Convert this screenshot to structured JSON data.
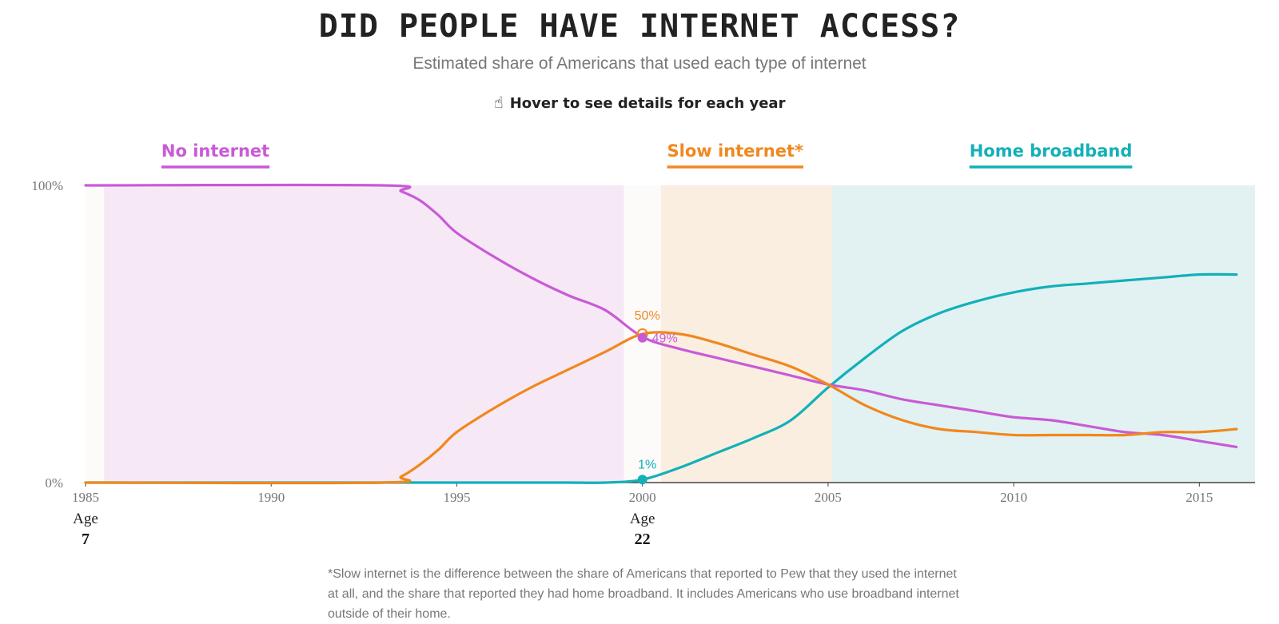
{
  "header": {
    "title": "DID PEOPLE HAVE INTERNET ACCESS?",
    "subtitle": "Estimated share of Americans that used each type of internet",
    "hover_hint": "Hover to see details for each year"
  },
  "footnote": "*Slow internet is the difference between the share of Americans that reported to Pew that they used the internet at all, and the share that reported they had home broadband. It includes Americans who use broadband internet outside of their home.",
  "colors": {
    "no_internet": "#c95ad6",
    "slow_internet": "#f0881e",
    "home_broadband": "#13b0b8",
    "axis": "#444444",
    "tick_label": "#777777"
  },
  "chart_data": {
    "type": "line",
    "title": "DID PEOPLE HAVE INTERNET ACCESS?",
    "xlabel": "",
    "ylabel": "",
    "xlim": [
      1985,
      2016.5
    ],
    "ylim": [
      0,
      100
    ],
    "x_ticks": [
      1985,
      1990,
      1995,
      2000,
      2005,
      2010,
      2015
    ],
    "y_ticks": [
      {
        "value": 0,
        "label": "0%"
      },
      {
        "value": 100,
        "label": "100%"
      }
    ],
    "x": [
      1985,
      1993,
      1993.5,
      1994,
      1994.5,
      1995,
      1996,
      1997,
      1998,
      1999,
      2000,
      2001,
      2002,
      2003,
      2004,
      2005,
      2006,
      2007,
      2008,
      2009,
      2010,
      2011,
      2012,
      2013,
      2014,
      2015,
      2016
    ],
    "series": [
      {
        "name": "No internet",
        "color_key": "no_internet",
        "values": [
          100,
          100,
          98,
          95,
          90,
          84,
          76,
          69,
          63,
          58,
          49,
          45,
          42,
          39,
          36,
          33,
          31,
          28,
          26,
          24,
          22,
          21,
          19,
          17,
          16,
          14,
          12
        ]
      },
      {
        "name": "Slow internet*",
        "color_key": "slow_internet",
        "values": [
          0,
          0,
          2,
          6,
          11,
          17,
          25,
          32,
          38,
          44,
          50,
          50,
          47,
          43,
          39,
          33,
          26,
          21,
          18,
          17,
          16,
          16,
          16,
          16,
          17,
          17,
          18
        ]
      },
      {
        "name": "Home broadband",
        "color_key": "home_broadband",
        "values": [
          0,
          0,
          0,
          0,
          0,
          0,
          0,
          0,
          0,
          0,
          1,
          5,
          10,
          15,
          21,
          32,
          42,
          51,
          57,
          61,
          64,
          66,
          67,
          68,
          69,
          70,
          70
        ]
      }
    ],
    "era_bands": [
      {
        "from": 1985.5,
        "to": 1999.5,
        "color_key": "no_internet"
      },
      {
        "from": 2000.5,
        "to": 2005.1,
        "color_key": "slow_internet"
      },
      {
        "from": 2005.1,
        "to": 2016.5,
        "color_key": "home_broadband"
      }
    ],
    "legend": [
      {
        "label": "No internet",
        "color_key": "no_internet",
        "center_year": 1988.5
      },
      {
        "label": "Slow internet*",
        "color_key": "slow_internet",
        "center_year": 2002.5
      },
      {
        "label": "Home broadband",
        "color_key": "home_broadband",
        "center_year": 2011
      }
    ],
    "age_markers": [
      {
        "year": 1985,
        "label": "Age",
        "age": "7"
      },
      {
        "year": 2000,
        "label": "Age",
        "age": "22"
      }
    ],
    "highlight": {
      "year": 2000,
      "labels": [
        {
          "series": "Slow internet*",
          "value": 50,
          "text": "50%"
        },
        {
          "series": "No internet",
          "value": 49,
          "text": "49%"
        },
        {
          "series": "Home broadband",
          "value": 1,
          "text": "1%"
        }
      ]
    }
  }
}
